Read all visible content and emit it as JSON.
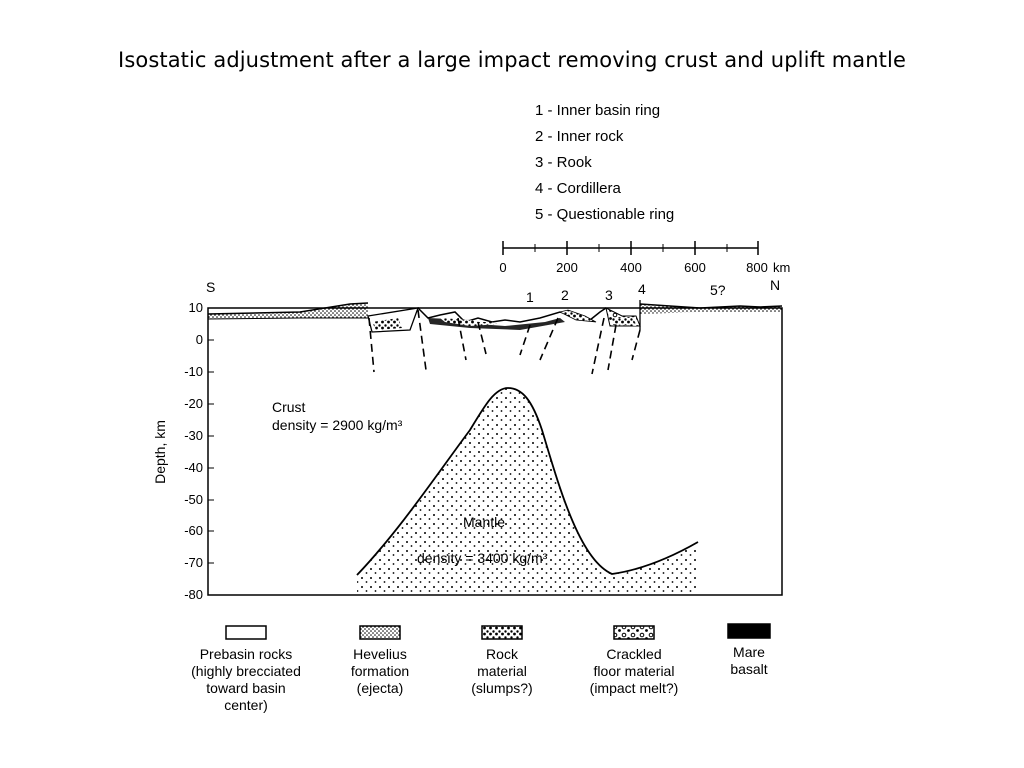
{
  "title": "Isostatic adjustment after a large impact removing crust and uplift mantle",
  "ring_key": [
    "1 - Inner basin ring",
    "2 - Inner rock",
    "3 - Rook",
    "4 - Cordillera",
    "5 - Questionable ring"
  ],
  "scale_bar": {
    "ticks": [
      "0",
      "200",
      "400",
      "600",
      "800"
    ],
    "unit": "km"
  },
  "profile": {
    "south_label": "S",
    "north_label": "N",
    "ring_markers": [
      "1",
      "2",
      "3",
      "4",
      "5?"
    ]
  },
  "depth_axis": {
    "label": "Depth, km",
    "ticks": [
      "10",
      "0",
      "-10",
      "-20",
      "-30",
      "-40",
      "-50",
      "-60",
      "-70",
      "-80"
    ]
  },
  "crust": {
    "name": "Crust",
    "density": "density = 2900 kg/m³"
  },
  "mantle": {
    "name": "Mantle",
    "density": "density = 3400 kg/m³"
  },
  "legend": [
    {
      "swatch": "open",
      "lines": [
        "Prebasin rocks",
        "(highly brecciated",
        "toward basin",
        "center)"
      ]
    },
    {
      "swatch": "dense-dots",
      "lines": [
        "Hevelius",
        "formation",
        "(ejecta)"
      ]
    },
    {
      "swatch": "mottled",
      "lines": [
        "Rock",
        "material",
        "(slumps?)"
      ]
    },
    {
      "swatch": "circles",
      "lines": [
        "Crackled",
        "floor material",
        "(impact melt?)"
      ]
    },
    {
      "swatch": "solid",
      "lines": [
        "Mare",
        "basalt"
      ]
    }
  ]
}
